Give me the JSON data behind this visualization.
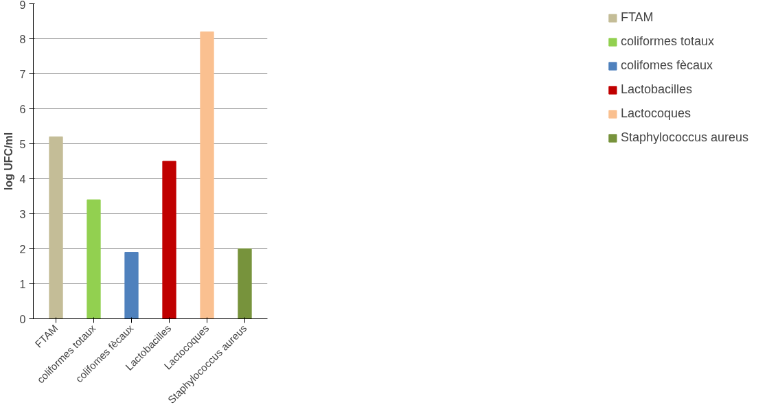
{
  "chart_data": {
    "type": "bar",
    "ylabel": "log UFC/ml",
    "categories": [
      "FTAM",
      "coliformes totaux",
      "colifomes fècaux",
      "Lactobacilles",
      "Lactocoques",
      "Staphylococcus aureus"
    ],
    "series": [
      {
        "name": "FTAM",
        "color": "#c4bd97",
        "values": [
          5.2,
          null,
          null,
          null,
          null,
          null
        ]
      },
      {
        "name": "coliformes totaux",
        "color": "#92d050",
        "values": [
          null,
          3.4,
          null,
          null,
          null,
          null
        ]
      },
      {
        "name": "colifomes fècaux",
        "color": "#4f81bd",
        "values": [
          null,
          null,
          1.9,
          null,
          null,
          null
        ]
      },
      {
        "name": "Lactobacilles",
        "color": "#c00000",
        "values": [
          null,
          null,
          null,
          4.5,
          null,
          null
        ]
      },
      {
        "name": "Lactocoques",
        "color": "#fac090",
        "values": [
          null,
          null,
          null,
          null,
          8.2,
          null
        ]
      },
      {
        "name": "Staphylococcus aureus",
        "color": "#77933c",
        "values": [
          null,
          null,
          null,
          null,
          null,
          2.0
        ]
      }
    ],
    "ylim": [
      0,
      9
    ],
    "yticks": [
      0,
      1,
      2,
      3,
      4,
      5,
      6,
      7,
      8,
      9
    ],
    "grid": "y",
    "legend": "right"
  }
}
